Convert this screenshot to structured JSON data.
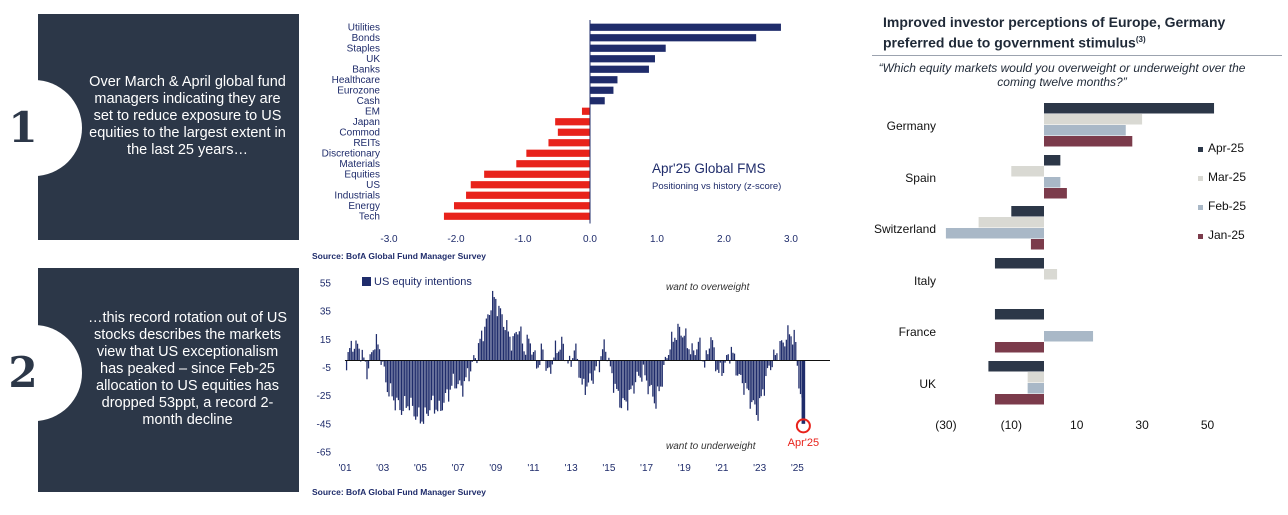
{
  "panel1": {
    "number": "1",
    "text": "Over March & April global fund managers indicating they are set to reduce exposure to US equities to the largest extent in the last 25 years…"
  },
  "panel2": {
    "number": "2",
    "text": "…this record rotation out of US stocks describes the markets view that US exceptionalism has peaked – since Feb-25 allocation to US equities has dropped 53ppt, a record 2-month decline"
  },
  "chart1_source": "Source: BofA Global Fund Manager Survey",
  "chart2_source": "Source: BofA Global Fund Manager Survey",
  "chart3_header": {
    "title": "Improved investor perceptions of Europe, Germany preferred due to government stimulus",
    "footnote": "(3)",
    "question": "“Which equity markets would you overweight or underweight over the coming twelve months?”"
  },
  "colors": {
    "navy": "#1f2c6b",
    "red": "#e8221b",
    "panel": "#2c3748",
    "apr": "#2c3748",
    "mar": "#d9d9d3",
    "feb": "#a9b8c7",
    "jan": "#7b3b4b"
  },
  "chart_data": [
    {
      "type": "bar",
      "orientation": "horizontal",
      "title": "Apr'25 Global FMS",
      "subtitle": "Positioning vs history (z-score)",
      "categories": [
        "Utilities",
        "Bonds",
        "Staples",
        "UK",
        "Banks",
        "Healthcare",
        "Eurozone",
        "Cash",
        "EM",
        "Japan",
        "Commod",
        "REITs",
        "Discretionary",
        "Materials",
        "Equities",
        "US",
        "Industrials",
        "Energy",
        "Tech"
      ],
      "values": [
        2.85,
        2.48,
        1.13,
        0.97,
        0.88,
        0.41,
        0.35,
        0.22,
        -0.12,
        -0.52,
        -0.48,
        -0.62,
        -0.95,
        -1.1,
        -1.58,
        -1.78,
        -1.85,
        -2.03,
        -2.18
      ],
      "xticks": [
        "-3.0",
        "-2.0",
        "-1.0",
        "0.0",
        "1.0",
        "2.0",
        "3.0"
      ],
      "xlim": [
        -3.0,
        3.0
      ]
    },
    {
      "type": "bar",
      "title": "",
      "legend": "US equity intentions",
      "annotations": [
        "want to overweight",
        "want to underweight",
        "Apr'25"
      ],
      "yticks": [
        "55",
        "35",
        "15",
        "-5",
        "-25",
        "-45",
        "-65"
      ],
      "xticks": [
        "'01",
        "'03",
        "'05",
        "'07",
        "'09",
        "'11",
        "'13",
        "'15",
        "'17",
        "'19",
        "'21",
        "'23",
        "'25"
      ],
      "ylim": [
        -65,
        55
      ],
      "x_range": [
        2001.0,
        2025.3
      ],
      "anchors": [
        [
          2001.0,
          -2
        ],
        [
          2001.4,
          12
        ],
        [
          2001.8,
          8
        ],
        [
          2002.2,
          -8
        ],
        [
          2002.6,
          15
        ],
        [
          2002.9,
          5
        ],
        [
          2003.2,
          -18
        ],
        [
          2003.6,
          -28
        ],
        [
          2004.0,
          -35
        ],
        [
          2004.4,
          -30
        ],
        [
          2004.8,
          -40
        ],
        [
          2005.2,
          -42
        ],
        [
          2005.6,
          -30
        ],
        [
          2006.0,
          -36
        ],
        [
          2006.4,
          -25
        ],
        [
          2006.8,
          -15
        ],
        [
          2007.2,
          -20
        ],
        [
          2007.6,
          -8
        ],
        [
          2008.0,
          5
        ],
        [
          2008.3,
          20
        ],
        [
          2008.6,
          30
        ],
        [
          2008.8,
          45
        ],
        [
          2009.0,
          42
        ],
        [
          2009.3,
          32
        ],
        [
          2009.6,
          22
        ],
        [
          2009.9,
          12
        ],
        [
          2010.2,
          25
        ],
        [
          2010.5,
          8
        ],
        [
          2010.8,
          15
        ],
        [
          2011.2,
          -5
        ],
        [
          2011.5,
          8
        ],
        [
          2011.8,
          -12
        ],
        [
          2012.1,
          5
        ],
        [
          2012.5,
          12
        ],
        [
          2012.9,
          -5
        ],
        [
          2013.2,
          10
        ],
        [
          2013.6,
          -20
        ],
        [
          2014.0,
          -15
        ],
        [
          2014.4,
          -5
        ],
        [
          2014.8,
          12
        ],
        [
          2015.1,
          -8
        ],
        [
          2015.4,
          -22
        ],
        [
          2015.7,
          -32
        ],
        [
          2016.0,
          -28
        ],
        [
          2016.4,
          -15
        ],
        [
          2016.8,
          -8
        ],
        [
          2017.1,
          -18
        ],
        [
          2017.5,
          -30
        ],
        [
          2017.8,
          -15
        ],
        [
          2018.1,
          5
        ],
        [
          2018.5,
          18
        ],
        [
          2018.8,
          22
        ],
        [
          2019.1,
          15
        ],
        [
          2019.4,
          5
        ],
        [
          2019.8,
          12
        ],
        [
          2020.1,
          -5
        ],
        [
          2020.4,
          18
        ],
        [
          2020.8,
          -10
        ],
        [
          2021.1,
          -5
        ],
        [
          2021.5,
          8
        ],
        [
          2021.9,
          -12
        ],
        [
          2022.2,
          -18
        ],
        [
          2022.6,
          -30
        ],
        [
          2022.9,
          -38
        ],
        [
          2023.2,
          -20
        ],
        [
          2023.5,
          -5
        ],
        [
          2023.9,
          5
        ],
        [
          2024.2,
          12
        ],
        [
          2024.6,
          20
        ],
        [
          2024.9,
          14
        ],
        [
          2025.1,
          -18
        ],
        [
          2025.3,
          -38
        ]
      ]
    },
    {
      "type": "bar",
      "orientation": "horizontal",
      "title": "Improved investor perceptions of Europe, Germany preferred due to government stimulus",
      "categories": [
        "Germany",
        "Spain",
        "Switzerland",
        "Italy",
        "France",
        "UK"
      ],
      "series": [
        {
          "name": "Apr-25",
          "values": [
            52,
            5,
            -10,
            -15,
            -15,
            -17
          ]
        },
        {
          "name": "Mar-25",
          "values": [
            30,
            -10,
            -20,
            4,
            0,
            -5
          ]
        },
        {
          "name": "Feb-25",
          "values": [
            25,
            5,
            -30,
            0,
            15,
            -5
          ]
        },
        {
          "name": "Jan-25",
          "values": [
            27,
            7,
            -4,
            0,
            -15,
            -15
          ]
        }
      ],
      "xticks": [
        "(30)",
        "(10)",
        "10",
        "30",
        "50"
      ],
      "xlim": [
        -30,
        55
      ]
    }
  ]
}
